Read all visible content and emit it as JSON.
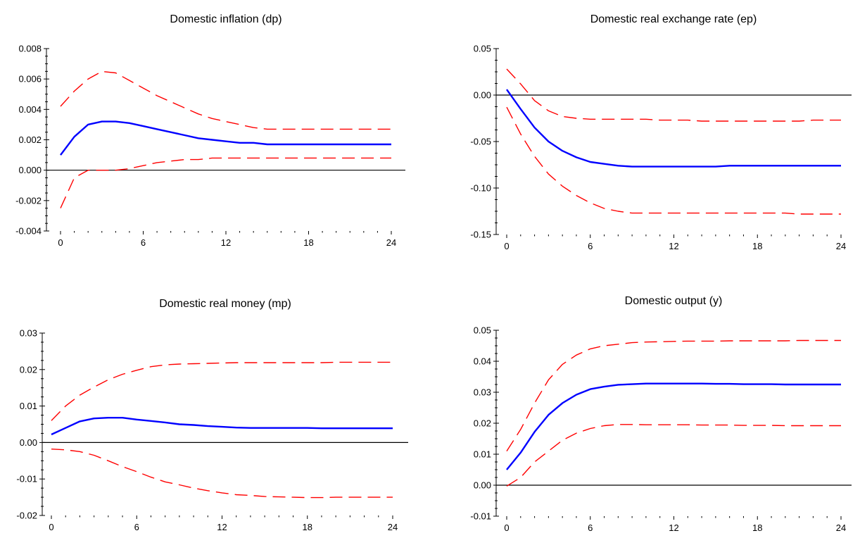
{
  "chart_data": [
    {
      "type": "line",
      "title": "Domestic inflation (dp)",
      "xlabel": "",
      "ylabel": "",
      "xlim": [
        0,
        24
      ],
      "ylim": [
        -0.004,
        0.008
      ],
      "xticks": [
        0,
        6,
        12,
        18,
        24
      ],
      "xtick_labels": [
        "0",
        "6",
        "12",
        "18",
        "24"
      ],
      "yticks": [
        -0.004,
        -0.002,
        0,
        0.002,
        0.004,
        0.006,
        0.008
      ],
      "ytick_labels": [
        "-0.004",
        "-0.002",
        "0.000",
        "0.002",
        "0.004",
        "0.006",
        "0.008"
      ],
      "zero_line": true,
      "grid": false,
      "x": [
        0,
        1,
        2,
        3,
        4,
        5,
        6,
        7,
        8,
        9,
        10,
        11,
        12,
        13,
        14,
        15,
        16,
        17,
        18,
        19,
        20,
        21,
        22,
        23,
        24
      ],
      "series": [
        {
          "role": "estimate",
          "style": "solid",
          "color": "#0000ff",
          "values": [
            0.001,
            0.0022,
            0.003,
            0.0032,
            0.0032,
            0.0031,
            0.0029,
            0.0027,
            0.0025,
            0.0023,
            0.0021,
            0.002,
            0.0019,
            0.0018,
            0.0018,
            0.0017,
            0.0017,
            0.0017,
            0.0017,
            0.0017,
            0.0017,
            0.0017,
            0.0017,
            0.0017,
            0.0017
          ]
        },
        {
          "role": "upper",
          "style": "dashed",
          "color": "#ff0000",
          "values": [
            0.0042,
            0.0052,
            0.006,
            0.0065,
            0.0064,
            0.0059,
            0.0054,
            0.0049,
            0.0045,
            0.0041,
            0.0037,
            0.0034,
            0.0032,
            0.003,
            0.0028,
            0.0027,
            0.0027,
            0.0027,
            0.0027,
            0.0027,
            0.0027,
            0.0027,
            0.0027,
            0.0027,
            0.0027
          ]
        },
        {
          "role": "lower",
          "style": "dashed",
          "color": "#ff0000",
          "values": [
            -0.0025,
            -0.0005,
            0.0,
            0.0,
            0.0,
            0.0001,
            0.0003,
            0.0005,
            0.0006,
            0.0007,
            0.0007,
            0.0008,
            0.0008,
            0.0008,
            0.0008,
            0.0008,
            0.0008,
            0.0008,
            0.0008,
            0.0008,
            0.0008,
            0.0008,
            0.0008,
            0.0008,
            0.0008
          ]
        }
      ]
    },
    {
      "type": "line",
      "title": "Domestic real exchange rate (ep)",
      "xlabel": "",
      "ylabel": "",
      "xlim": [
        0,
        24
      ],
      "ylim": [
        -0.15,
        0.05
      ],
      "xticks": [
        0,
        6,
        12,
        18,
        24
      ],
      "xtick_labels": [
        "0",
        "6",
        "12",
        "18",
        "24"
      ],
      "yticks": [
        -0.15,
        -0.1,
        -0.05,
        0,
        0.05
      ],
      "ytick_labels": [
        "-0.15",
        "-0.10",
        "-0.05",
        "0.00",
        "0.05"
      ],
      "zero_line": true,
      "grid": false,
      "x": [
        0,
        1,
        2,
        3,
        4,
        5,
        6,
        7,
        8,
        9,
        10,
        11,
        12,
        13,
        14,
        15,
        16,
        17,
        18,
        19,
        20,
        21,
        22,
        23,
        24
      ],
      "series": [
        {
          "role": "estimate",
          "style": "solid",
          "color": "#0000ff",
          "values": [
            0.006,
            -0.015,
            -0.035,
            -0.05,
            -0.06,
            -0.067,
            -0.072,
            -0.074,
            -0.076,
            -0.077,
            -0.077,
            -0.077,
            -0.077,
            -0.077,
            -0.077,
            -0.077,
            -0.076,
            -0.076,
            -0.076,
            -0.076,
            -0.076,
            -0.076,
            -0.076,
            -0.076,
            -0.076
          ]
        },
        {
          "role": "upper",
          "style": "dashed",
          "color": "#ff0000",
          "values": [
            0.028,
            0.012,
            -0.006,
            -0.017,
            -0.023,
            -0.025,
            -0.026,
            -0.026,
            -0.026,
            -0.026,
            -0.026,
            -0.027,
            -0.027,
            -0.027,
            -0.028,
            -0.028,
            -0.028,
            -0.028,
            -0.028,
            -0.028,
            -0.028,
            -0.028,
            -0.027,
            -0.027,
            -0.027
          ]
        },
        {
          "role": "lower",
          "style": "dashed",
          "color": "#ff0000",
          "values": [
            -0.013,
            -0.042,
            -0.066,
            -0.085,
            -0.098,
            -0.108,
            -0.116,
            -0.122,
            -0.125,
            -0.127,
            -0.127,
            -0.127,
            -0.127,
            -0.127,
            -0.127,
            -0.127,
            -0.127,
            -0.127,
            -0.127,
            -0.127,
            -0.127,
            -0.128,
            -0.128,
            -0.128,
            -0.128
          ]
        }
      ]
    },
    {
      "type": "line",
      "title": "Domestic real money (mp)",
      "xlabel": "",
      "ylabel": "",
      "xlim": [
        0,
        24
      ],
      "ylim": [
        -0.02,
        0.03
      ],
      "xticks": [
        0,
        6,
        12,
        18,
        24
      ],
      "xtick_labels": [
        "0",
        "6",
        "12",
        "18",
        "24"
      ],
      "yticks": [
        -0.02,
        -0.01,
        0,
        0.01,
        0.02,
        0.03
      ],
      "ytick_labels": [
        "-0.02",
        "-0.01",
        "0.00",
        "0.01",
        "0.02",
        "0.03"
      ],
      "zero_line": true,
      "grid": false,
      "x": [
        0,
        1,
        2,
        3,
        4,
        5,
        6,
        7,
        8,
        9,
        10,
        11,
        12,
        13,
        14,
        15,
        16,
        17,
        18,
        19,
        20,
        21,
        22,
        23,
        24
      ],
      "series": [
        {
          "role": "estimate",
          "style": "solid",
          "color": "#0000ff",
          "values": [
            0.0022,
            0.004,
            0.0058,
            0.0066,
            0.0068,
            0.0068,
            0.0063,
            0.0059,
            0.0055,
            0.005,
            0.0048,
            0.0045,
            0.0043,
            0.0041,
            0.004,
            0.004,
            0.004,
            0.004,
            0.004,
            0.0039,
            0.0039,
            0.0039,
            0.0039,
            0.0039,
            0.0039
          ]
        },
        {
          "role": "upper",
          "style": "dashed",
          "color": "#ff0000",
          "values": [
            0.006,
            0.01,
            0.013,
            0.0152,
            0.0172,
            0.0187,
            0.0198,
            0.0208,
            0.0213,
            0.0215,
            0.0216,
            0.0217,
            0.0218,
            0.0219,
            0.0219,
            0.0219,
            0.0219,
            0.0219,
            0.0219,
            0.0219,
            0.022,
            0.022,
            0.022,
            0.022,
            0.022
          ]
        },
        {
          "role": "lower",
          "style": "dashed",
          "color": "#ff0000",
          "values": [
            -0.0018,
            -0.002,
            -0.0025,
            -0.0035,
            -0.005,
            -0.0066,
            -0.008,
            -0.0095,
            -0.0108,
            -0.0116,
            -0.0125,
            -0.0132,
            -0.0138,
            -0.0143,
            -0.0145,
            -0.0148,
            -0.0149,
            -0.015,
            -0.0151,
            -0.0151,
            -0.015,
            -0.015,
            -0.015,
            -0.015,
            -0.015
          ]
        }
      ]
    },
    {
      "type": "line",
      "title": "Domestic output (y)",
      "xlabel": "",
      "ylabel": "",
      "xlim": [
        0,
        24
      ],
      "ylim": [
        -0.01,
        0.05
      ],
      "xticks": [
        0,
        6,
        12,
        18,
        24
      ],
      "xtick_labels": [
        "0",
        "6",
        "12",
        "18",
        "24"
      ],
      "yticks": [
        -0.01,
        0,
        0.01,
        0.02,
        0.03,
        0.04,
        0.05
      ],
      "ytick_labels": [
        "-0.01",
        "0.00",
        "0.01",
        "0.02",
        "0.03",
        "0.04",
        "0.05"
      ],
      "zero_line": true,
      "grid": false,
      "x": [
        0,
        1,
        2,
        3,
        4,
        5,
        6,
        7,
        8,
        9,
        10,
        11,
        12,
        13,
        14,
        15,
        16,
        17,
        18,
        19,
        20,
        21,
        22,
        23,
        24
      ],
      "series": [
        {
          "role": "estimate",
          "style": "solid",
          "color": "#0000ff",
          "values": [
            0.005,
            0.0105,
            0.0172,
            0.0227,
            0.0265,
            0.0292,
            0.031,
            0.0318,
            0.0324,
            0.0326,
            0.0328,
            0.0328,
            0.0328,
            0.0328,
            0.0328,
            0.0327,
            0.0327,
            0.0326,
            0.0326,
            0.0326,
            0.0325,
            0.0325,
            0.0325,
            0.0325,
            0.0325
          ]
        },
        {
          "role": "upper",
          "style": "dashed",
          "color": "#ff0000",
          "values": [
            0.011,
            0.018,
            0.0265,
            0.034,
            0.039,
            0.042,
            0.044,
            0.045,
            0.0455,
            0.046,
            0.0462,
            0.0463,
            0.0464,
            0.0465,
            0.0465,
            0.0465,
            0.0466,
            0.0466,
            0.0466,
            0.0466,
            0.0466,
            0.0467,
            0.0467,
            0.0467,
            0.0467
          ]
        },
        {
          "role": "lower",
          "style": "dashed",
          "color": "#ff0000",
          "values": [
            -0.0003,
            0.0025,
            0.0075,
            0.011,
            0.0145,
            0.0168,
            0.0183,
            0.0192,
            0.0196,
            0.0196,
            0.0195,
            0.0195,
            0.0195,
            0.0195,
            0.0194,
            0.0194,
            0.0194,
            0.0193,
            0.0193,
            0.0193,
            0.0192,
            0.0192,
            0.0192,
            0.0192,
            0.0192
          ]
        }
      ]
    }
  ]
}
